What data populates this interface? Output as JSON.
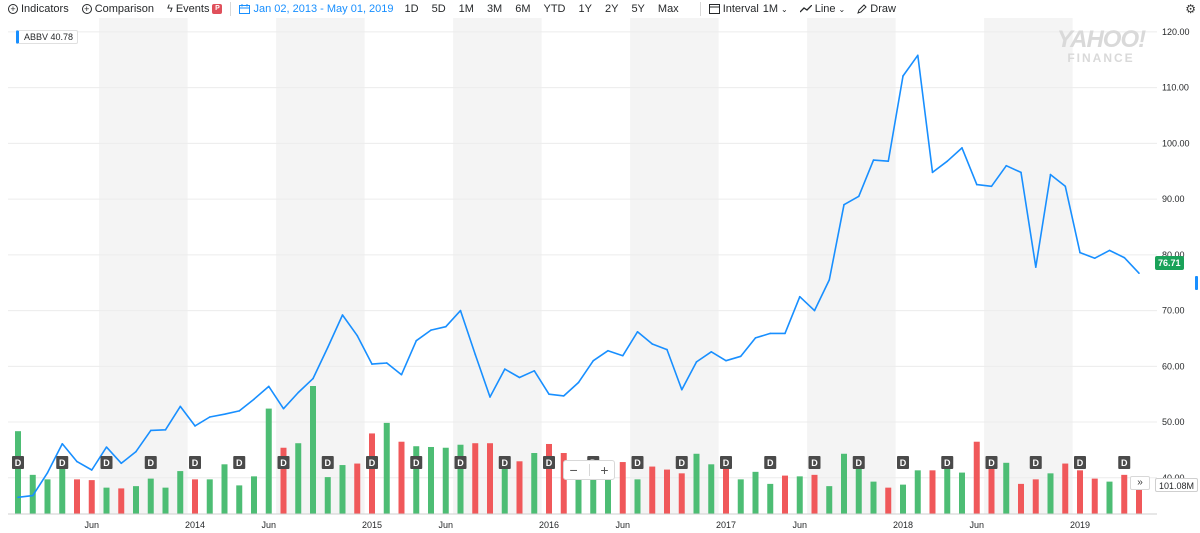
{
  "toolbar": {
    "indicators_label": "Indicators",
    "comparison_label": "Comparison",
    "events_label": "Events",
    "date_range_label": "Jan 02, 2013 - May 01, 2019",
    "ranges": [
      "1D",
      "5D",
      "1M",
      "3M",
      "6M",
      "YTD",
      "1Y",
      "2Y",
      "5Y",
      "Max"
    ],
    "interval_label": "Interval",
    "interval_value": "1M",
    "chart_type_label": "Line",
    "draw_label": "Draw"
  },
  "legend": {
    "symbol": "ABBV",
    "value": "40.78",
    "color": "#188fff"
  },
  "watermark": {
    "line1": "YAHOO!",
    "line2": "FINANCE"
  },
  "last_price_tag": "76.71",
  "volume_tag": "101.08M",
  "dividend_marker_label": "D",
  "colors": {
    "line": "#188fff",
    "up": "#4dbd74",
    "down": "#f0585a",
    "shade": "#f4f4f4",
    "last_price_bg": "#1aa259"
  },
  "chart_data": {
    "type": "line",
    "title": "",
    "xlabel": "",
    "ylabel": "",
    "ylim": [
      33.5,
      122.5
    ],
    "yticks": [
      "120.00",
      "110.00",
      "100.00",
      "90.00",
      "80.00",
      "70.00",
      "60.00",
      "50.00",
      "40.00"
    ],
    "x_tick_labels": [
      "Jun",
      "2014",
      "Jun",
      "2015",
      "Jun",
      "2016",
      "Jun",
      "2017",
      "Jun",
      "2018",
      "Jun",
      "2019"
    ],
    "x_tick_months": [
      "2013-06",
      "2014-01",
      "2014-06",
      "2015-01",
      "2015-06",
      "2016-01",
      "2016-06",
      "2017-01",
      "2017-06",
      "2018-01",
      "2018-06",
      "2019-01"
    ],
    "x": [
      "2013-01",
      "2013-02",
      "2013-03",
      "2013-04",
      "2013-05",
      "2013-06",
      "2013-07",
      "2013-08",
      "2013-09",
      "2013-10",
      "2013-11",
      "2013-12",
      "2014-01",
      "2014-02",
      "2014-03",
      "2014-04",
      "2014-05",
      "2014-06",
      "2014-07",
      "2014-08",
      "2014-09",
      "2014-10",
      "2014-11",
      "2014-12",
      "2015-01",
      "2015-02",
      "2015-03",
      "2015-04",
      "2015-05",
      "2015-06",
      "2015-07",
      "2015-08",
      "2015-09",
      "2015-10",
      "2015-11",
      "2015-12",
      "2016-01",
      "2016-02",
      "2016-03",
      "2016-04",
      "2016-05",
      "2016-06",
      "2016-07",
      "2016-08",
      "2016-09",
      "2016-10",
      "2016-11",
      "2016-12",
      "2017-01",
      "2017-02",
      "2017-03",
      "2017-04",
      "2017-05",
      "2017-06",
      "2017-07",
      "2017-08",
      "2017-09",
      "2017-10",
      "2017-11",
      "2017-12",
      "2018-01",
      "2018-02",
      "2018-03",
      "2018-04",
      "2018-05",
      "2018-06",
      "2018-07",
      "2018-08",
      "2018-09",
      "2018-10",
      "2018-11",
      "2018-12",
      "2019-01",
      "2019-02",
      "2019-03",
      "2019-04",
      "2019-05"
    ],
    "series": [
      {
        "values": [
          36.5,
          36.8,
          40.9,
          46.1,
          42.9,
          41.4,
          45.5,
          42.6,
          44.7,
          48.5,
          48.6,
          52.8,
          49.3,
          50.9,
          51.4,
          52.0,
          54.1,
          56.4,
          52.4,
          55.3,
          57.8,
          63.4,
          69.2,
          65.5,
          60.4,
          60.6,
          58.5,
          64.6,
          66.5,
          67.1,
          70.0,
          62.1,
          54.5,
          59.5,
          58.0,
          59.2,
          55.0,
          54.7,
          57.1,
          61.0,
          62.8,
          61.9,
          66.2,
          64.0,
          63.0,
          55.8,
          60.8,
          62.6,
          61.0,
          61.8,
          65.1,
          65.9,
          65.9,
          72.5,
          70.0,
          75.5,
          89.0,
          90.5,
          97.0,
          96.8,
          112.1,
          115.8,
          94.8,
          96.8,
          99.2,
          92.6,
          92.3,
          96.0,
          94.8,
          77.8,
          94.4,
          92.3,
          80.4,
          79.4,
          80.8,
          79.5,
          76.71
        ]
      }
    ],
    "volume_series": {
      "name": "Volume",
      "values": [
        110,
        52,
        46,
        66,
        46,
        45,
        35,
        34,
        37,
        47,
        35,
        57,
        46,
        46,
        66,
        38,
        50,
        140,
        88,
        94,
        170,
        49,
        65,
        67,
        107,
        121,
        96,
        90,
        89,
        88,
        92,
        94,
        94,
        66,
        70,
        81,
        93,
        81,
        57,
        65,
        67,
        69,
        46,
        63,
        59,
        54,
        80,
        66,
        63,
        46,
        56,
        40,
        51,
        50,
        52,
        37,
        80,
        74,
        43,
        35,
        39,
        58,
        58,
        67,
        55,
        96,
        65,
        68,
        40,
        46,
        54,
        67,
        58,
        47,
        43,
        52,
        40
      ],
      "up": [
        true,
        true,
        true,
        true,
        false,
        false,
        true,
        false,
        true,
        true,
        true,
        true,
        false,
        true,
        true,
        true,
        true,
        true,
        false,
        true,
        true,
        true,
        true,
        false,
        false,
        true,
        false,
        true,
        true,
        true,
        true,
        false,
        false,
        true,
        false,
        true,
        false,
        false,
        true,
        true,
        true,
        false,
        true,
        false,
        false,
        false,
        true,
        true,
        false,
        true,
        true,
        true,
        false,
        true,
        false,
        true,
        true,
        true,
        true,
        false,
        true,
        true,
        false,
        true,
        true,
        false,
        false,
        true,
        false,
        false,
        true,
        false,
        false,
        false,
        true,
        false,
        false
      ]
    },
    "dividend_months": [
      "2013-01",
      "2013-04",
      "2013-07",
      "2013-10",
      "2014-01",
      "2014-04",
      "2014-07",
      "2014-10",
      "2015-01",
      "2015-04",
      "2015-07",
      "2015-10",
      "2016-01",
      "2016-04",
      "2016-07",
      "2016-10",
      "2017-01",
      "2017-04",
      "2017-07",
      "2017-10",
      "2018-01",
      "2018-04",
      "2018-07",
      "2018-10",
      "2019-01",
      "2019-04"
    ],
    "grid": true
  }
}
